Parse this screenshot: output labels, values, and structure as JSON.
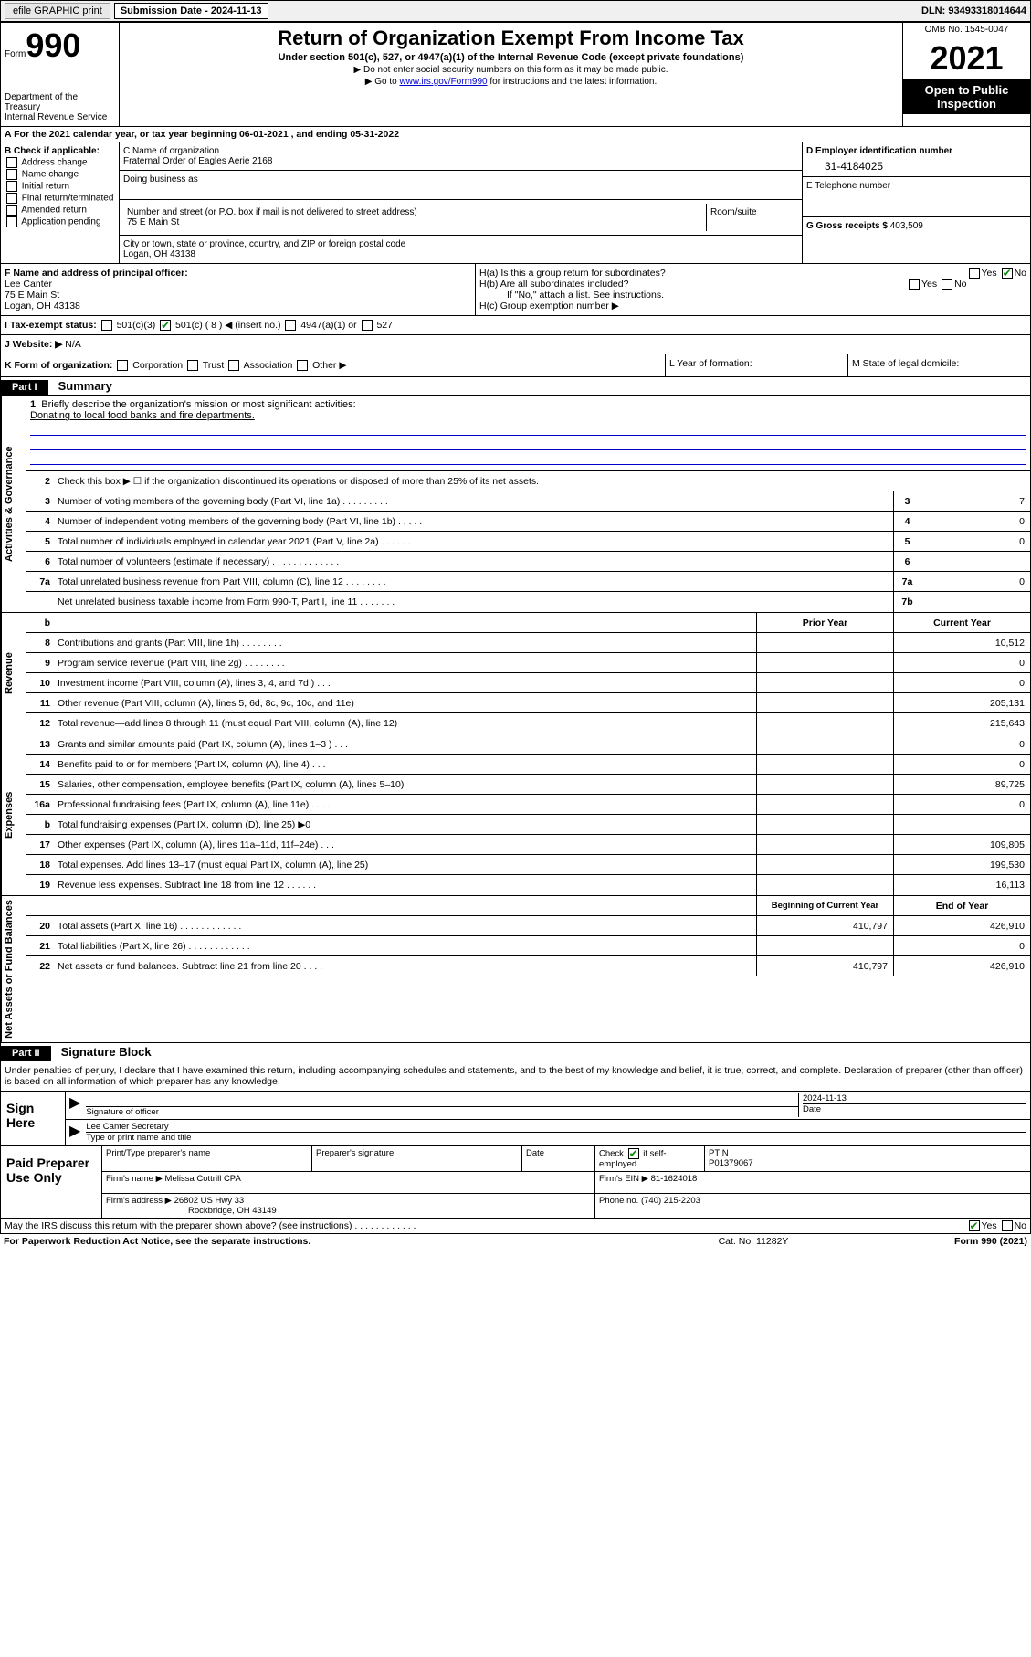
{
  "topbar": {
    "efile_label": "efile GRAPHIC print",
    "submission_label": "Submission Date - 2024-11-13",
    "dln": "DLN: 93493318014644"
  },
  "header": {
    "form_label": "Form",
    "form_number": "990",
    "dept": "Department of the Treasury",
    "irs": "Internal Revenue Service",
    "title": "Return of Organization Exempt From Income Tax",
    "subtitle": "Under section 501(c), 527, or 4947(a)(1) of the Internal Revenue Code (except private foundations)",
    "note1": "▶ Do not enter social security numbers on this form as it may be made public.",
    "note2_pre": "▶ Go to ",
    "note2_link": "www.irs.gov/Form990",
    "note2_post": " for instructions and the latest information.",
    "omb": "OMB No. 1545-0047",
    "year": "2021",
    "open_public": "Open to Public Inspection"
  },
  "row_a": "A For the 2021 calendar year, or tax year beginning 06-01-2021  , and ending 05-31-2022",
  "col_b": {
    "label": "B Check if applicable:",
    "items": [
      "Address change",
      "Name change",
      "Initial return",
      "Final return/terminated",
      "Amended return",
      "Application pending"
    ]
  },
  "col_c": {
    "name_label": "C Name of organization",
    "name": "Fraternal Order of Eagles Aerie 2168",
    "dba_label": "Doing business as",
    "street_label": "Number and street (or P.O. box if mail is not delivered to street address)",
    "street": "75 E Main St",
    "room_label": "Room/suite",
    "city_label": "City or town, state or province, country, and ZIP or foreign postal code",
    "city": "Logan, OH  43138"
  },
  "col_d": {
    "ein_label": "D Employer identification number",
    "ein": "31-4184025",
    "phone_label": "E Telephone number",
    "gross_label": "G Gross receipts $",
    "gross": "403,509"
  },
  "row_f": {
    "label": "F Name and address of principal officer:",
    "name": "Lee Canter",
    "street": "75 E Main St",
    "city": "Logan, OH  43138"
  },
  "row_h": {
    "ha": "H(a)  Is this a group return for subordinates?",
    "hb": "H(b)  Are all subordinates included?",
    "hb_note": "If \"No,\" attach a list. See instructions.",
    "hc": "H(c)  Group exemption number ▶",
    "yes": "Yes",
    "no": "No"
  },
  "row_i": {
    "label": "I   Tax-exempt status:",
    "opt1": "501(c)(3)",
    "opt2": "501(c) ( 8 ) ◀ (insert no.)",
    "opt3": "4947(a)(1) or",
    "opt4": "527"
  },
  "row_j": {
    "label": "J   Website: ▶",
    "val": "N/A"
  },
  "row_k": {
    "label": "K Form of organization:",
    "opts": [
      "Corporation",
      "Trust",
      "Association",
      "Other ▶"
    ]
  },
  "row_l": "L Year of formation:",
  "row_m": "M State of legal domicile:",
  "part1": {
    "header": "Part I",
    "title": "Summary"
  },
  "summary": {
    "tab1": "Activities & Governance",
    "tab2": "Revenue",
    "tab3": "Expenses",
    "tab4": "Net Assets or Fund Balances",
    "line1": "Briefly describe the organization's mission or most significant activities:",
    "mission": "Donating to local food banks and fire departments.",
    "line2": "Check this box ▶ ☐  if the organization discontinued its operations or disposed of more than 25% of its net assets.",
    "lines_gov": [
      {
        "n": "3",
        "d": "Number of voting members of the governing body (Part VI, line 1a)   .    .    .    .    .    .    .    .    .",
        "b": "3",
        "v": "7"
      },
      {
        "n": "4",
        "d": "Number of independent voting members of the governing body (Part VI, line 1b)   .    .    .    .    .",
        "b": "4",
        "v": "0"
      },
      {
        "n": "5",
        "d": "Total number of individuals employed in calendar year 2021 (Part V, line 2a)   .    .    .    .    .    .",
        "b": "5",
        "v": "0"
      },
      {
        "n": "6",
        "d": "Total number of volunteers (estimate if necessary)   .    .    .    .    .    .    .    .    .    .    .    .    .",
        "b": "6",
        "v": ""
      },
      {
        "n": "7a",
        "d": "Total unrelated business revenue from Part VIII, column (C), line 12   .    .    .    .    .    .    .    .",
        "b": "7a",
        "v": "0"
      },
      {
        "n": "",
        "d": "Net unrelated business taxable income from Form 990-T, Part I, line 11   .    .    .    .    .    .    .",
        "b": "7b",
        "v": ""
      }
    ],
    "col_head_prior": "Prior Year",
    "col_head_current": "Current Year",
    "lines_rev": [
      {
        "n": "8",
        "d": "Contributions and grants (Part VIII, line 1h)   .    .    .    .    .    .    .    .",
        "p": "",
        "c": "10,512"
      },
      {
        "n": "9",
        "d": "Program service revenue (Part VIII, line 2g)   .    .    .    .    .    .    .    .",
        "p": "",
        "c": "0"
      },
      {
        "n": "10",
        "d": "Investment income (Part VIII, column (A), lines 3, 4, and 7d )   .    .    .",
        "p": "",
        "c": "0"
      },
      {
        "n": "11",
        "d": "Other revenue (Part VIII, column (A), lines 5, 6d, 8c, 9c, 10c, and 11e)",
        "p": "",
        "c": "205,131"
      },
      {
        "n": "12",
        "d": "Total revenue—add lines 8 through 11 (must equal Part VIII, column (A), line 12)",
        "p": "",
        "c": "215,643"
      }
    ],
    "lines_exp": [
      {
        "n": "13",
        "d": "Grants and similar amounts paid (Part IX, column (A), lines 1–3 )   .    .    .",
        "p": "",
        "c": "0"
      },
      {
        "n": "14",
        "d": "Benefits paid to or for members (Part IX, column (A), line 4)   .    .    .",
        "p": "",
        "c": "0"
      },
      {
        "n": "15",
        "d": "Salaries, other compensation, employee benefits (Part IX, column (A), lines 5–10)",
        "p": "",
        "c": "89,725"
      },
      {
        "n": "16a",
        "d": "Professional fundraising fees (Part IX, column (A), line 11e)   .    .    .    .",
        "p": "",
        "c": "0"
      },
      {
        "n": "b",
        "d": "Total fundraising expenses (Part IX, column (D), line 25) ▶0",
        "p": "shade",
        "c": "shade"
      },
      {
        "n": "17",
        "d": "Other expenses (Part IX, column (A), lines 11a–11d, 11f–24e)   .    .    .",
        "p": "",
        "c": "109,805"
      },
      {
        "n": "18",
        "d": "Total expenses. Add lines 13–17 (must equal Part IX, column (A), line 25)",
        "p": "",
        "c": "199,530"
      },
      {
        "n": "19",
        "d": "Revenue less expenses. Subtract line 18 from line 12   .    .    .    .    .    .",
        "p": "",
        "c": "16,113"
      }
    ],
    "col_head_begin": "Beginning of Current Year",
    "col_head_end": "End of Year",
    "lines_net": [
      {
        "n": "20",
        "d": "Total assets (Part X, line 16)   .    .    .    .    .    .    .    .    .    .    .    .",
        "p": "410,797",
        "c": "426,910"
      },
      {
        "n": "21",
        "d": "Total liabilities (Part X, line 26)   .    .    .    .    .    .    .    .    .    .    .    .",
        "p": "",
        "c": "0"
      },
      {
        "n": "22",
        "d": "Net assets or fund balances. Subtract line 21 from line 20   .    .    .    .",
        "p": "410,797",
        "c": "426,910"
      }
    ]
  },
  "part2": {
    "header": "Part II",
    "title": "Signature Block"
  },
  "sig": {
    "intro": "Under penalties of perjury, I declare that I have examined this return, including accompanying schedules and statements, and to the best of my knowledge and belief, it is true, correct, and complete. Declaration of preparer (other than officer) is based on all information of which preparer has any knowledge.",
    "sign_here": "Sign Here",
    "sig_officer": "Signature of officer",
    "date_label": "Date",
    "date": "2024-11-13",
    "name_title": "Lee Canter Secretary",
    "name_title_label": "Type or print name and title",
    "paid_prep": "Paid Preparer Use Only",
    "prep_name_label": "Print/Type preparer's name",
    "prep_sig_label": "Preparer's signature",
    "check_if": "Check",
    "check_if2": "if self-employed",
    "ptin_label": "PTIN",
    "ptin": "P01379067",
    "firm_name_label": "Firm's name    ▶",
    "firm_name": "Melissa Cottrill CPA",
    "firm_ein_label": "Firm's EIN ▶",
    "firm_ein": "81-1624018",
    "firm_addr_label": "Firm's address ▶",
    "firm_addr1": "26802 US Hwy 33",
    "firm_addr2": "Rockbridge, OH  43149",
    "phone_label": "Phone no.",
    "phone": "(740) 215-2203",
    "may_irs": "May the IRS discuss this return with the preparer shown above? (see instructions)   .    .    .    .    .    .    .    .    .    .    .    .",
    "yes": "Yes",
    "no": "No"
  },
  "footer": {
    "left": "For Paperwork Reduction Act Notice, see the separate instructions.",
    "mid": "Cat. No. 11282Y",
    "right": "Form 990 (2021)"
  }
}
